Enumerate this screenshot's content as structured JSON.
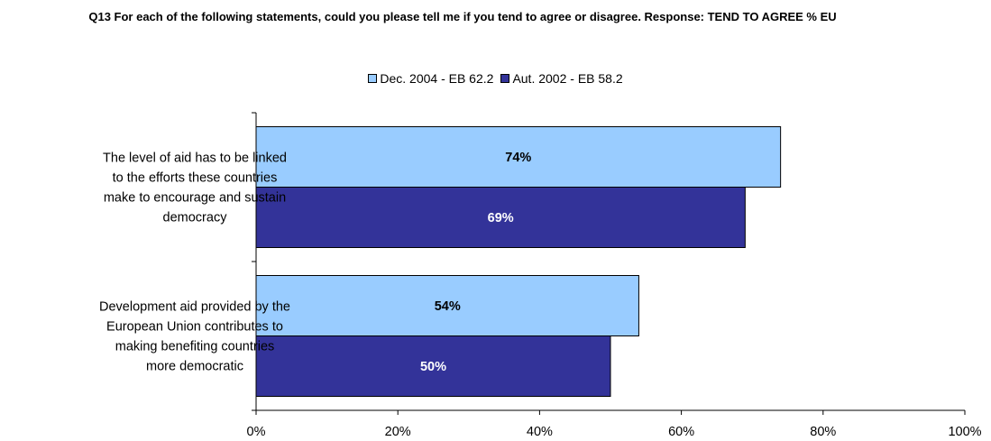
{
  "chart_data": {
    "type": "bar",
    "orientation": "horizontal",
    "title": "Q13 For each of the following statements, could you please tell me if you tend to agree or disagree. Response: TEND TO AGREE % EU",
    "categories": [
      [
        "The level of aid has to be linked",
        "to the efforts these countries",
        "make to encourage and sustain",
        "democracy"
      ],
      [
        "Development aid provided by the",
        "European Union contributes to",
        "making benefiting countries",
        "more democratic"
      ]
    ],
    "series": [
      {
        "name": "Dec. 2004 - EB 62.2",
        "color": "#99ccff",
        "label_color": "#000000",
        "values": [
          74,
          54
        ]
      },
      {
        "name": "Aut. 2002 - EB 58.2",
        "color": "#333399",
        "label_color": "#ffffff",
        "values": [
          69,
          50
        ]
      }
    ],
    "xlim": [
      0,
      100
    ],
    "xticks": [
      "0%",
      "20%",
      "40%",
      "60%",
      "80%",
      "100%"
    ],
    "value_suffix": "%",
    "legend_position": "top",
    "grid": false
  }
}
